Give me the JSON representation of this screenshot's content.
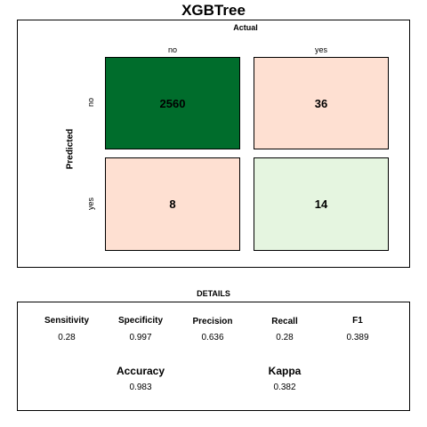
{
  "chart_data": {
    "type": "heatmap",
    "title": "XGBTree",
    "x_axis_title": "Actual",
    "y_axis_title": "Predicted",
    "actual_labels": [
      "no",
      "yes"
    ],
    "predicted_labels": [
      "no",
      "yes"
    ],
    "matrix": [
      {
        "predicted": "no",
        "cells": [
          {
            "actual": "no",
            "value": 2560,
            "color": "#006d2c"
          },
          {
            "actual": "yes",
            "value": 36,
            "color": "#fee0d2"
          }
        ]
      },
      {
        "predicted": "yes",
        "cells": [
          {
            "actual": "no",
            "value": 8,
            "color": "#fee0d2"
          },
          {
            "actual": "yes",
            "value": 14,
            "color": "#e5f5e0"
          }
        ]
      }
    ]
  },
  "details": {
    "title": "DETAILS",
    "metrics": [
      {
        "label": "Sensitivity",
        "value": "0.28"
      },
      {
        "label": "Specificity",
        "value": "0.997"
      },
      {
        "label": "Precision",
        "value": "0.636"
      },
      {
        "label": "Recall",
        "value": "0.28"
      },
      {
        "label": "F1",
        "value": "0.389"
      }
    ],
    "big_metrics": [
      {
        "label": "Accuracy",
        "value": "0.983"
      },
      {
        "label": "Kappa",
        "value": "0.382"
      }
    ]
  }
}
